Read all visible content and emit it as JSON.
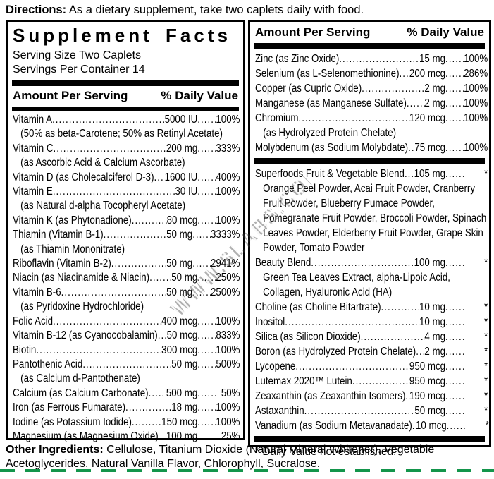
{
  "directions": {
    "label": "Directions:",
    "text": "As a dietary supplement, take two caplets daily with food."
  },
  "panel": {
    "title": "Supplement Facts",
    "serving_size": "Serving Size Two Caplets",
    "servings_per_container": "Servings Per Container 14",
    "column_headers": {
      "amount": "Amount Per Serving",
      "daily_value": "% Daily Value"
    },
    "left_rows": [
      {
        "name": "Vitamin A",
        "amount": "5000 IU",
        "dv": "100%",
        "note": "(50% as beta-Carotene; 50% as Retinyl Acetate)"
      },
      {
        "name": "Vitamin C",
        "amount": "200 mg",
        "dv": "333%",
        "note": "(as Ascorbic Acid & Calcium Ascorbate)"
      },
      {
        "name": "Vitamin D (as Cholecalciferol D-3)",
        "amount": "1600 IU",
        "dv": "400%"
      },
      {
        "name": "Vitamin E",
        "amount": "30 IU",
        "dv": "100%",
        "note": "(as Natural d-alpha Tocopheryl Acetate)"
      },
      {
        "name": "Vitamin K (as Phytonadione)",
        "amount": "80 mcg",
        "dv": "100%"
      },
      {
        "name": "Thiamin (Vitamin B-1)",
        "amount": "50 mg",
        "dv": "3333%",
        "note": "(as Thiamin Mononitrate)"
      },
      {
        "name": "Riboflavin (Vitamin B-2)",
        "amount": "50 mg",
        "dv": "2941%"
      },
      {
        "name": "Niacin (as Niacinamide & Niacin)",
        "amount": "50 mg",
        "dv": "250%"
      },
      {
        "name": "Vitamin B-6",
        "amount": "50 mg",
        "dv": "2500%",
        "note": "(as Pyridoxine Hydrochloride)"
      },
      {
        "name": "Folic Acid",
        "amount": "400 mcg",
        "dv": "100%"
      },
      {
        "name": "Vitamin B-12 (as Cyanocobalamin)",
        "amount": "50 mcg",
        "dv": "833%"
      },
      {
        "name": "Biotin",
        "amount": "300 mcg",
        "dv": "100%"
      },
      {
        "name": "Pantothenic Acid",
        "amount": "50 mg",
        "dv": "500%",
        "note": "(as Calcium d-Pantothenate)"
      },
      {
        "name": "Calcium (as Calcium Carbonate)",
        "amount": "500 mg",
        "dv": "50%"
      },
      {
        "name": "Iron (as Ferrous Fumarate)",
        "amount": "18 mg",
        "dv": "100%"
      },
      {
        "name": "Iodine (as Potassium Iodide)",
        "amount": "150 mcg",
        "dv": "100%"
      },
      {
        "name": "Magnesium (as Magnesium Oxide)",
        "amount": "100 mg",
        "dv": "25%"
      }
    ],
    "right_top_rows": [
      {
        "name": "Zinc (as Zinc Oxide)",
        "amount": "15 mg",
        "dv": "100%"
      },
      {
        "name": "Selenium (as L-Selenomethionine)",
        "amount": "200 mcg",
        "dv": "286%"
      },
      {
        "name": "Copper (as Cupric Oxide)",
        "amount": "2 mg",
        "dv": "100%"
      },
      {
        "name": "Manganese (as Manganese Sulfate)",
        "amount": "2 mg",
        "dv": "100%"
      },
      {
        "name": "Chromium",
        "amount": "120 mcg",
        "dv": "100%",
        "note": "(as Hydrolyzed Protein Chelate)"
      },
      {
        "name": "Molybdenum (as Sodium Molybdate)",
        "amount": "75 mcg",
        "dv": "100%"
      }
    ],
    "right_bottom_rows": [
      {
        "name": "Superfoods Fruit & Vegetable Blend",
        "amount": "105 mg",
        "dv": "*",
        "note": "Orange Peel Powder, Acai Fruit Powder, Cranberry Fruit Powder, Blueberry Pumace Powder, Pomegranate Fruit Powder, Broccoli Powder, Spinach Leaves Powder, Elderberry Fruit Powder, Grape Skin Powder, Tomato Powder"
      },
      {
        "name": "Beauty Blend",
        "amount": "100 mg",
        "dv": "*",
        "note": "Green Tea Leaves Extract, alpha-Lipoic Acid, Collagen, Hyaluronic Acid (HA)"
      },
      {
        "name": "Choline (as Choline Bitartrate)",
        "amount": "10 mg",
        "dv": "*"
      },
      {
        "name": "Inositol",
        "amount": "10 mg",
        "dv": "*"
      },
      {
        "name": "Silica (as Silicon Dioxide)",
        "amount": "4 mg",
        "dv": "*"
      },
      {
        "name": "Boron (as Hydrolyzed Protein Chelate)",
        "amount": "2 mg",
        "dv": "*"
      },
      {
        "name": "Lycopene",
        "amount": "950 mcg",
        "dv": "*"
      },
      {
        "name": "Lutemax 2020™ Lutein",
        "amount": "950 mcg",
        "dv": "*"
      },
      {
        "name": "Zeaxanthin (as Zeaxanthin Isomers)",
        "amount": "190 mcg",
        "dv": "*"
      },
      {
        "name": "Astaxanthin",
        "amount": "50 mcg",
        "dv": "*"
      },
      {
        "name": "Vanadium (as Sodium Metavanadate)",
        "amount": "10 mcg",
        "dv": "*"
      }
    ],
    "footnote": "* Daily Value not established."
  },
  "other_ingredients": {
    "label": "Other Ingredients:",
    "text": "Cellulose, Titanium Dioxide (Natural Mineral Whitener), Vegetable Acetoglycerides, Natural Vanilla Flavor, Chlorophyll, Sucralose."
  },
  "watermark": {
    "text": "WWW.SLABS.COM"
  },
  "colors": {
    "text": "#000000",
    "background": "#ffffff",
    "cut_line_green": "#13954b"
  }
}
